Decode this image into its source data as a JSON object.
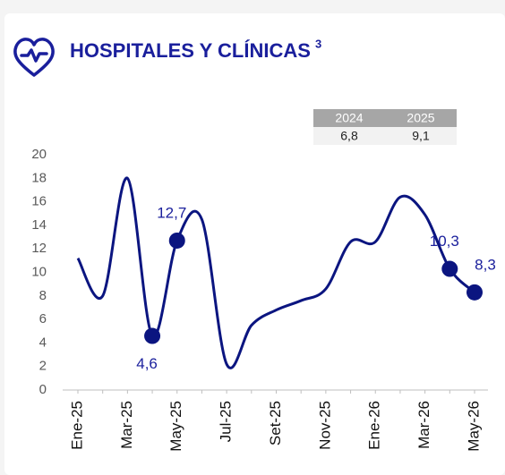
{
  "chart_data": {
    "type": "line",
    "title": "HOSPITALES Y CLÍNICAS",
    "title_note": "3",
    "summary": {
      "headers": [
        "2024",
        "2025"
      ],
      "values": [
        "6,8",
        "9,1"
      ]
    },
    "categories": [
      "Ene-25",
      null,
      "Mar-25",
      null,
      "May-25",
      null,
      "Jul-25",
      null,
      "Set-25",
      null,
      "Nov-25",
      null,
      "Ene-26",
      null,
      "Mar-26",
      null,
      "May-26"
    ],
    "values": [
      11.2,
      8.0,
      18.0,
      4.6,
      12.7,
      14.5,
      2.2,
      5.5,
      6.8,
      7.6,
      8.6,
      12.6,
      12.6,
      16.4,
      14.9,
      10.3,
      8.3
    ],
    "value_labels": [
      null,
      null,
      null,
      "4,6",
      "12,7",
      null,
      null,
      null,
      null,
      null,
      null,
      null,
      null,
      null,
      null,
      "10,3",
      "8,3"
    ],
    "color": "#0b1580",
    "ylim": [
      0,
      20
    ],
    "yticks": [
      0,
      2,
      4,
      6,
      8,
      10,
      12,
      14,
      16,
      18,
      20
    ]
  }
}
